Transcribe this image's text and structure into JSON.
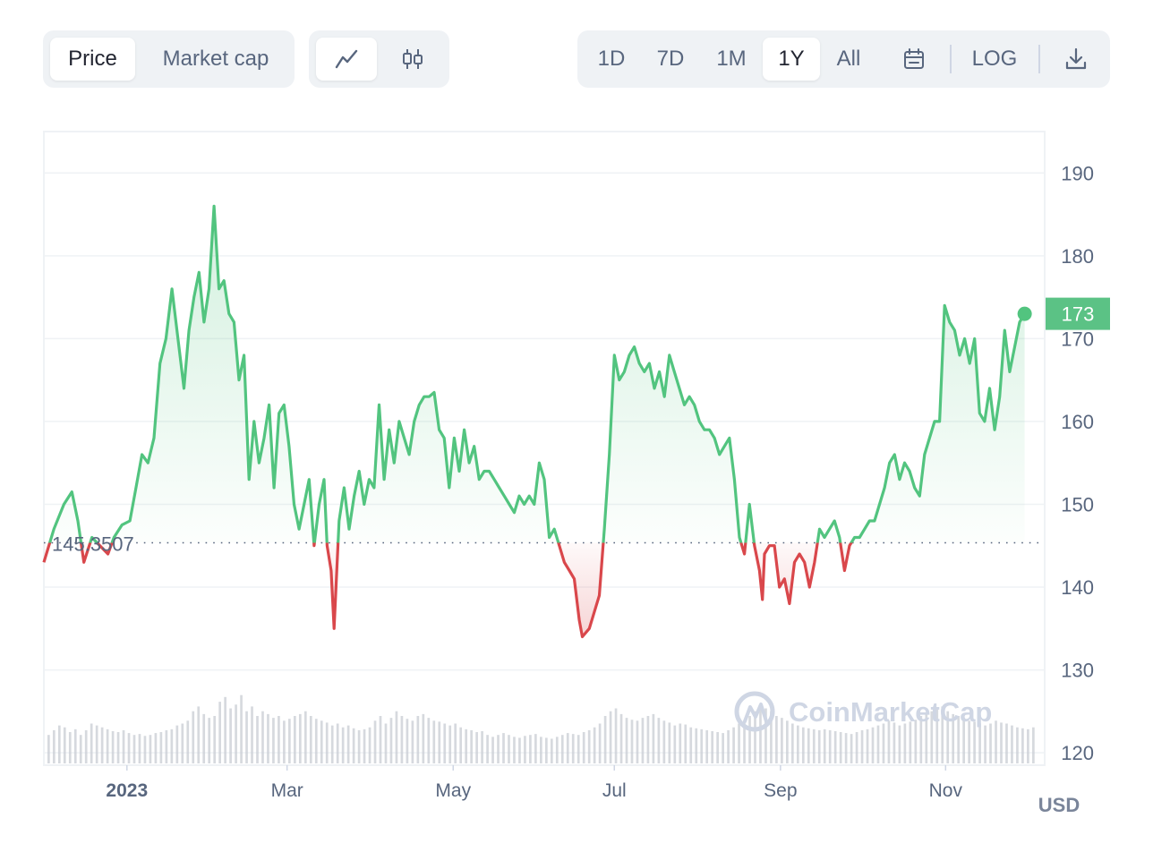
{
  "toolbar": {
    "metric_tabs": [
      {
        "label": "Price",
        "active": true
      },
      {
        "label": "Market cap",
        "active": false
      }
    ],
    "chart_type_icons": [
      {
        "icon": "line-chart-icon",
        "active": true
      },
      {
        "icon": "candlestick-icon",
        "active": false
      }
    ],
    "ranges": [
      {
        "label": "1D",
        "active": false
      },
      {
        "label": "7D",
        "active": false
      },
      {
        "label": "1M",
        "active": false
      },
      {
        "label": "1Y",
        "active": true
      },
      {
        "label": "All",
        "active": false
      }
    ],
    "calendar_icon": "calendar-icon",
    "log_label": "LOG",
    "download_icon": "download-icon"
  },
  "chart": {
    "currency_label": "USD",
    "baseline_label": "145.3507",
    "current_price_label": "173",
    "watermark": "CoinMarketCap",
    "colors": {
      "up": "#52c47f",
      "down": "#d9474b",
      "grid": "#eff2f5",
      "tag": "#5bc285",
      "volume": "#c8ccd3"
    }
  },
  "chart_data": {
    "type": "line",
    "title": "",
    "xlabel": "",
    "ylabel": "",
    "ylim": [
      118.5,
      195
    ],
    "yticks": [
      120,
      130,
      140,
      150,
      160,
      170,
      180,
      190
    ],
    "xticks": [
      {
        "label": "2023",
        "t": 0.083
      },
      {
        "label": "Mar",
        "t": 0.243
      },
      {
        "label": "May",
        "t": 0.409
      },
      {
        "label": "Jul",
        "t": 0.57
      },
      {
        "label": "Sep",
        "t": 0.736
      },
      {
        "label": "Nov",
        "t": 0.901
      }
    ],
    "baseline": 145.3507,
    "last_price": 173,
    "series": [
      {
        "points": [
          [
            0.0,
            143
          ],
          [
            0.01,
            147
          ],
          [
            0.02,
            150
          ],
          [
            0.028,
            151.5
          ],
          [
            0.034,
            148
          ],
          [
            0.04,
            143
          ],
          [
            0.048,
            146
          ],
          [
            0.056,
            145
          ],
          [
            0.064,
            144
          ],
          [
            0.07,
            146
          ],
          [
            0.078,
            147.5
          ],
          [
            0.086,
            148
          ],
          [
            0.092,
            152
          ],
          [
            0.098,
            156
          ],
          [
            0.104,
            155
          ],
          [
            0.11,
            158
          ],
          [
            0.116,
            167
          ],
          [
            0.122,
            170
          ],
          [
            0.128,
            176
          ],
          [
            0.134,
            170
          ],
          [
            0.14,
            164
          ],
          [
            0.145,
            171
          ],
          [
            0.15,
            175
          ],
          [
            0.155,
            178
          ],
          [
            0.16,
            172
          ],
          [
            0.165,
            176
          ],
          [
            0.17,
            186
          ],
          [
            0.175,
            176
          ],
          [
            0.18,
            177
          ],
          [
            0.185,
            173
          ],
          [
            0.19,
            172
          ],
          [
            0.195,
            165
          ],
          [
            0.2,
            168
          ],
          [
            0.205,
            153
          ],
          [
            0.21,
            160
          ],
          [
            0.215,
            155
          ],
          [
            0.22,
            158
          ],
          [
            0.225,
            162
          ],
          [
            0.23,
            152
          ],
          [
            0.235,
            161
          ],
          [
            0.24,
            162
          ],
          [
            0.245,
            157
          ],
          [
            0.25,
            150
          ],
          [
            0.255,
            147
          ],
          [
            0.26,
            150
          ],
          [
            0.265,
            153
          ],
          [
            0.27,
            145
          ],
          [
            0.275,
            150
          ],
          [
            0.28,
            153
          ],
          [
            0.283,
            145
          ],
          [
            0.287,
            142
          ],
          [
            0.29,
            135
          ],
          [
            0.295,
            148
          ],
          [
            0.3,
            152
          ],
          [
            0.305,
            147
          ],
          [
            0.31,
            151
          ],
          [
            0.315,
            154
          ],
          [
            0.32,
            150
          ],
          [
            0.325,
            153
          ],
          [
            0.33,
            152
          ],
          [
            0.335,
            162
          ],
          [
            0.34,
            153
          ],
          [
            0.345,
            159
          ],
          [
            0.35,
            155
          ],
          [
            0.355,
            160
          ],
          [
            0.36,
            158
          ],
          [
            0.365,
            156
          ],
          [
            0.37,
            160
          ],
          [
            0.375,
            162
          ],
          [
            0.38,
            163
          ],
          [
            0.385,
            163
          ],
          [
            0.39,
            163.5
          ],
          [
            0.395,
            159
          ],
          [
            0.4,
            158
          ],
          [
            0.405,
            152
          ],
          [
            0.41,
            158
          ],
          [
            0.415,
            154
          ],
          [
            0.42,
            159
          ],
          [
            0.425,
            155
          ],
          [
            0.43,
            157
          ],
          [
            0.435,
            153
          ],
          [
            0.44,
            154
          ],
          [
            0.445,
            154
          ],
          [
            0.45,
            153
          ],
          [
            0.455,
            152
          ],
          [
            0.46,
            151
          ],
          [
            0.465,
            150
          ],
          [
            0.47,
            149
          ],
          [
            0.475,
            151
          ],
          [
            0.48,
            150
          ],
          [
            0.485,
            151
          ],
          [
            0.49,
            150
          ],
          [
            0.495,
            155
          ],
          [
            0.5,
            153
          ],
          [
            0.505,
            146
          ],
          [
            0.51,
            147
          ],
          [
            0.515,
            145
          ],
          [
            0.52,
            143
          ],
          [
            0.525,
            142
          ],
          [
            0.53,
            141
          ],
          [
            0.535,
            136
          ],
          [
            0.538,
            134
          ],
          [
            0.545,
            135
          ],
          [
            0.55,
            137
          ],
          [
            0.555,
            139
          ],
          [
            0.56,
            147
          ],
          [
            0.565,
            156
          ],
          [
            0.57,
            168
          ],
          [
            0.575,
            165
          ],
          [
            0.58,
            166
          ],
          [
            0.585,
            168
          ],
          [
            0.59,
            169
          ],
          [
            0.595,
            167
          ],
          [
            0.6,
            166
          ],
          [
            0.605,
            167
          ],
          [
            0.61,
            164
          ],
          [
            0.615,
            166
          ],
          [
            0.62,
            163
          ],
          [
            0.625,
            168
          ],
          [
            0.63,
            166
          ],
          [
            0.635,
            164
          ],
          [
            0.64,
            162
          ],
          [
            0.645,
            163
          ],
          [
            0.65,
            162
          ],
          [
            0.655,
            160
          ],
          [
            0.66,
            159
          ],
          [
            0.665,
            159
          ],
          [
            0.67,
            158
          ],
          [
            0.675,
            156
          ],
          [
            0.68,
            157
          ],
          [
            0.685,
            158
          ],
          [
            0.69,
            153
          ],
          [
            0.695,
            146
          ],
          [
            0.7,
            144
          ],
          [
            0.705,
            150
          ],
          [
            0.71,
            145
          ],
          [
            0.715,
            142
          ],
          [
            0.718,
            138.5
          ],
          [
            0.72,
            144
          ],
          [
            0.725,
            145
          ],
          [
            0.73,
            145
          ],
          [
            0.735,
            140
          ],
          [
            0.74,
            141
          ],
          [
            0.745,
            138
          ],
          [
            0.75,
            143
          ],
          [
            0.755,
            144
          ],
          [
            0.76,
            143
          ],
          [
            0.765,
            140
          ],
          [
            0.77,
            143
          ],
          [
            0.775,
            147
          ],
          [
            0.78,
            146
          ],
          [
            0.785,
            147
          ],
          [
            0.79,
            148
          ],
          [
            0.795,
            146
          ],
          [
            0.8,
            142
          ],
          [
            0.805,
            145
          ],
          [
            0.81,
            146
          ],
          [
            0.815,
            146
          ],
          [
            0.82,
            147
          ],
          [
            0.825,
            148
          ],
          [
            0.83,
            148
          ],
          [
            0.835,
            150
          ],
          [
            0.84,
            152
          ],
          [
            0.845,
            155
          ],
          [
            0.85,
            156
          ],
          [
            0.855,
            153
          ],
          [
            0.86,
            155
          ],
          [
            0.865,
            154
          ],
          [
            0.87,
            152
          ],
          [
            0.875,
            151
          ],
          [
            0.88,
            156
          ],
          [
            0.885,
            158
          ],
          [
            0.89,
            160
          ],
          [
            0.895,
            160
          ],
          [
            0.9,
            174
          ],
          [
            0.905,
            172
          ],
          [
            0.91,
            171
          ],
          [
            0.915,
            168
          ],
          [
            0.92,
            170
          ],
          [
            0.925,
            167
          ],
          [
            0.93,
            170
          ],
          [
            0.935,
            161
          ],
          [
            0.94,
            160
          ],
          [
            0.945,
            164
          ],
          [
            0.95,
            159
          ],
          [
            0.955,
            163
          ],
          [
            0.96,
            171
          ],
          [
            0.965,
            166
          ],
          [
            0.97,
            169
          ],
          [
            0.975,
            172
          ],
          [
            0.98,
            173
          ]
        ]
      }
    ],
    "volume": {
      "ylabel": "",
      "values": [
        0.3,
        0.35,
        0.4,
        0.38,
        0.33,
        0.36,
        0.3,
        0.35,
        0.42,
        0.4,
        0.38,
        0.36,
        0.34,
        0.33,
        0.35,
        0.32,
        0.3,
        0.31,
        0.29,
        0.3,
        0.32,
        0.33,
        0.35,
        0.36,
        0.4,
        0.42,
        0.45,
        0.55,
        0.6,
        0.52,
        0.48,
        0.5,
        0.65,
        0.7,
        0.58,
        0.62,
        0.72,
        0.55,
        0.6,
        0.5,
        0.55,
        0.52,
        0.48,
        0.5,
        0.45,
        0.47,
        0.5,
        0.52,
        0.55,
        0.5,
        0.47,
        0.45,
        0.43,
        0.4,
        0.42,
        0.38,
        0.4,
        0.37,
        0.35,
        0.36,
        0.38,
        0.45,
        0.5,
        0.42,
        0.48,
        0.55,
        0.5,
        0.47,
        0.45,
        0.5,
        0.52,
        0.48,
        0.45,
        0.44,
        0.42,
        0.4,
        0.42,
        0.38,
        0.36,
        0.35,
        0.33,
        0.34,
        0.3,
        0.28,
        0.3,
        0.32,
        0.3,
        0.28,
        0.27,
        0.29,
        0.3,
        0.31,
        0.28,
        0.27,
        0.26,
        0.28,
        0.3,
        0.32,
        0.31,
        0.3,
        0.33,
        0.35,
        0.38,
        0.42,
        0.5,
        0.55,
        0.58,
        0.52,
        0.48,
        0.46,
        0.45,
        0.48,
        0.5,
        0.52,
        0.48,
        0.45,
        0.43,
        0.4,
        0.42,
        0.41,
        0.38,
        0.37,
        0.36,
        0.35,
        0.34,
        0.33,
        0.32,
        0.35,
        0.38,
        0.42,
        0.45,
        0.5,
        0.55,
        0.6,
        0.58,
        0.55,
        0.5,
        0.48,
        0.45,
        0.42,
        0.4,
        0.38,
        0.37,
        0.36,
        0.35,
        0.36,
        0.35,
        0.34,
        0.33,
        0.32,
        0.31,
        0.33,
        0.35,
        0.36,
        0.38,
        0.4,
        0.42,
        0.45,
        0.43,
        0.4,
        0.42,
        0.44,
        0.46,
        0.5,
        0.52,
        0.55,
        0.58,
        0.6,
        0.55,
        0.52,
        0.5,
        0.48,
        0.45,
        0.44,
        0.42,
        0.4,
        0.42,
        0.45,
        0.43,
        0.42,
        0.4,
        0.38,
        0.37,
        0.36,
        0.38
      ]
    }
  }
}
